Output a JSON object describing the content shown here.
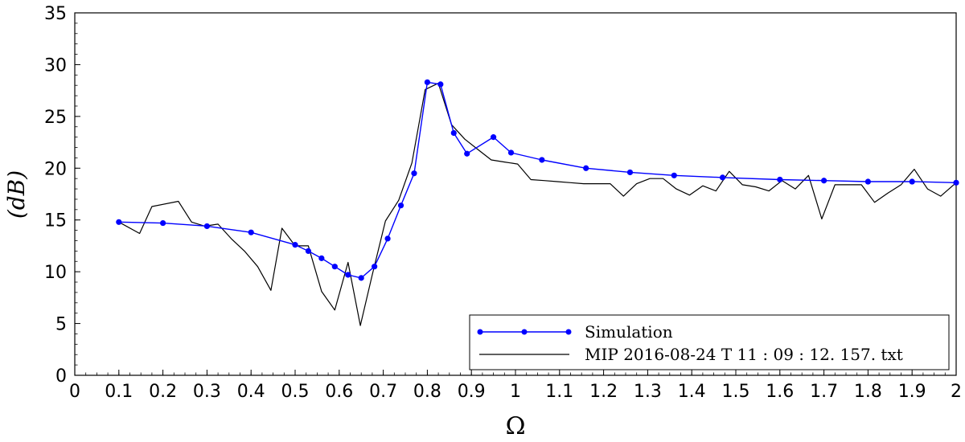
{
  "chart_data": {
    "type": "line",
    "title": "",
    "xlabel": "Ω",
    "ylabel": "(dB)",
    "xlim": [
      0,
      2
    ],
    "ylim": [
      0,
      35
    ],
    "x_ticks": [
      "0",
      "0.1",
      "0.2",
      "0.3",
      "0.4",
      "0.5",
      "0.6",
      "0.7",
      "0.8",
      "0.9",
      "1",
      "1.1",
      "1.2",
      "1.3",
      "1.4",
      "1.5",
      "1.6",
      "1.7",
      "1.8",
      "1.9",
      "2"
    ],
    "y_ticks": [
      "0",
      "5",
      "10",
      "15",
      "20",
      "25",
      "30",
      "35"
    ],
    "grid": false,
    "legend_position": "bottom-right",
    "series": [
      {
        "name": "Simulation",
        "color": "#0000ff",
        "marker": "circle",
        "x": [
          0.1,
          0.2,
          0.3,
          0.4,
          0.5,
          0.53,
          0.56,
          0.59,
          0.62,
          0.65,
          0.68,
          0.71,
          0.74,
          0.77,
          0.8,
          0.83,
          0.86,
          0.89,
          0.95,
          0.99,
          1.06,
          1.16,
          1.26,
          1.36,
          1.47,
          1.6,
          1.7,
          1.8,
          1.9,
          2.0
        ],
        "y": [
          14.8,
          14.7,
          14.4,
          13.8,
          12.6,
          12.0,
          11.3,
          10.5,
          9.7,
          9.4,
          10.5,
          13.2,
          16.4,
          19.5,
          28.3,
          28.1,
          23.4,
          21.4,
          23.0,
          21.5,
          20.8,
          20.0,
          19.6,
          19.3,
          19.1,
          18.9,
          18.8,
          18.7,
          18.7,
          18.6
        ]
      },
      {
        "name": "MIP 2016-08-24 T 11 : 09 : 12. 157. txt",
        "color": "#000000",
        "marker": "none",
        "x": [
          0.1,
          0.147,
          0.175,
          0.235,
          0.265,
          0.295,
          0.325,
          0.355,
          0.385,
          0.415,
          0.445,
          0.47,
          0.5,
          0.53,
          0.56,
          0.59,
          0.62,
          0.648,
          0.675,
          0.705,
          0.735,
          0.765,
          0.795,
          0.825,
          0.855,
          0.885,
          0.915,
          0.945,
          0.975,
          1.005,
          1.035,
          1.065,
          1.095,
          1.125,
          1.155,
          1.185,
          1.215,
          1.245,
          1.275,
          1.305,
          1.335,
          1.365,
          1.395,
          1.425,
          1.455,
          1.485,
          1.515,
          1.545,
          1.575,
          1.605,
          1.635,
          1.665,
          1.695,
          1.725,
          1.755,
          1.785,
          1.815,
          1.845,
          1.875,
          1.905,
          1.935,
          1.965,
          2.0
        ],
        "y": [
          14.8,
          13.7,
          16.3,
          16.8,
          14.8,
          14.4,
          14.6,
          13.2,
          12.0,
          10.5,
          8.2,
          14.2,
          12.5,
          12.5,
          8.1,
          6.3,
          10.9,
          4.8,
          9.7,
          14.9,
          16.9,
          20.5,
          27.6,
          28.2,
          24.2,
          22.8,
          21.8,
          20.8,
          20.6,
          20.4,
          18.9,
          18.8,
          18.7,
          18.6,
          18.5,
          18.5,
          18.5,
          17.3,
          18.5,
          19.0,
          19.0,
          18.0,
          17.4,
          18.3,
          17.8,
          19.7,
          18.4,
          18.2,
          17.8,
          18.8,
          18.0,
          19.3,
          15.1,
          18.4,
          18.4,
          18.4,
          16.7,
          17.6,
          18.4,
          19.9,
          18.0,
          17.3,
          18.6
        ]
      }
    ]
  }
}
